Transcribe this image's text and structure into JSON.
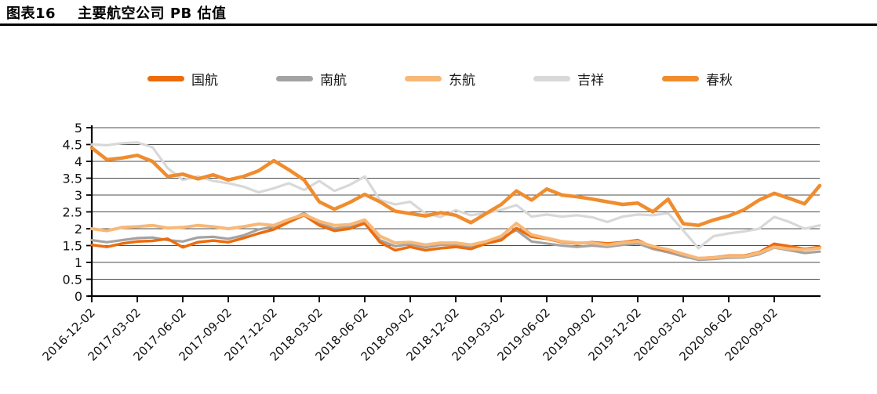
{
  "header": {
    "title_prefix": "图表16",
    "title": "主要航空公司 PB 估值"
  },
  "chart_data": {
    "type": "line",
    "title": "主要航空公司 PB 估值",
    "legend_position": "top",
    "grid": "horizontal",
    "ylim": [
      0,
      5
    ],
    "y_tick_step": 0.5,
    "y_tick_labels": [
      "0",
      "0.5",
      "1",
      "1.5",
      "2",
      "2.5",
      "3",
      "3.5",
      "4",
      "4.5",
      "5"
    ],
    "x_start": "2016-12",
    "x_step": "monthly",
    "x_months_per_tick": 3,
    "x_tick_labels": [
      "2016-12-02",
      "2017-03-02",
      "2017-06-02",
      "2017-09-02",
      "2017-12-02",
      "2018-03-02",
      "2018-06-02",
      "2018-09-02",
      "2018-12-02",
      "2019-03-02",
      "2019-06-02",
      "2019-09-02",
      "2019-12-02",
      "2020-03-02",
      "2020-06-02",
      "2020-09-02"
    ],
    "draw_order": [
      3,
      1,
      0,
      2,
      4
    ],
    "series": [
      {
        "name": "国航",
        "color": "#ec6c0d",
        "width": 3.5,
        "values": [
          1.52,
          1.46,
          1.56,
          1.62,
          1.64,
          1.7,
          1.45,
          1.6,
          1.65,
          1.6,
          1.72,
          1.86,
          1.98,
          2.2,
          2.4,
          2.1,
          1.94,
          2.0,
          2.16,
          1.6,
          1.36,
          1.46,
          1.36,
          1.42,
          1.46,
          1.4,
          1.56,
          1.66,
          2.02,
          1.76,
          1.7,
          1.6,
          1.56,
          1.6,
          1.56,
          1.6,
          1.66,
          1.45,
          1.35,
          1.25,
          1.12,
          1.15,
          1.2,
          1.2,
          1.3,
          1.55,
          1.48,
          1.4,
          1.46
        ]
      },
      {
        "name": "南航",
        "color": "#a3a3a3",
        "width": 3.2,
        "values": [
          1.66,
          1.6,
          1.66,
          1.72,
          1.74,
          1.66,
          1.62,
          1.74,
          1.76,
          1.7,
          1.8,
          1.98,
          2.06,
          2.26,
          2.46,
          2.16,
          2.0,
          2.06,
          2.2,
          1.66,
          1.48,
          1.54,
          1.45,
          1.52,
          1.52,
          1.46,
          1.6,
          1.72,
          1.96,
          1.62,
          1.56,
          1.5,
          1.46,
          1.5,
          1.46,
          1.52,
          1.56,
          1.4,
          1.3,
          1.18,
          1.08,
          1.1,
          1.14,
          1.15,
          1.24,
          1.44,
          1.36,
          1.28,
          1.32
        ]
      },
      {
        "name": "东航",
        "color": "#f7b878",
        "width": 4,
        "values": [
          2.0,
          1.94,
          2.04,
          2.06,
          2.1,
          2.02,
          2.04,
          2.1,
          2.06,
          2.0,
          2.06,
          2.14,
          2.1,
          2.28,
          2.42,
          2.22,
          2.1,
          2.12,
          2.26,
          1.78,
          1.58,
          1.6,
          1.52,
          1.58,
          1.58,
          1.52,
          1.62,
          1.78,
          2.16,
          1.82,
          1.72,
          1.62,
          1.58,
          1.58,
          1.52,
          1.58,
          1.62,
          1.48,
          1.38,
          1.25,
          1.12,
          1.14,
          1.18,
          1.18,
          1.28,
          1.46,
          1.4,
          1.38,
          1.42
        ]
      },
      {
        "name": "吉祥",
        "color": "#d8d8d8",
        "width": 3.2,
        "values": [
          4.5,
          4.48,
          4.54,
          4.56,
          4.42,
          3.8,
          3.45,
          3.55,
          3.42,
          3.35,
          3.25,
          3.08,
          3.2,
          3.35,
          3.15,
          3.42,
          3.12,
          3.3,
          3.55,
          2.85,
          2.72,
          2.8,
          2.45,
          2.35,
          2.55,
          2.4,
          2.46,
          2.56,
          2.7,
          2.36,
          2.42,
          2.36,
          2.4,
          2.34,
          2.2,
          2.36,
          2.42,
          2.4,
          2.46,
          1.95,
          1.42,
          1.78,
          1.86,
          1.92,
          2.0,
          2.35,
          2.2,
          2.0,
          2.1
        ]
      },
      {
        "name": "春秋",
        "color": "#f08c2e",
        "width": 4.5,
        "values": [
          4.4,
          4.05,
          4.1,
          4.18,
          4.0,
          3.55,
          3.62,
          3.48,
          3.6,
          3.45,
          3.55,
          3.72,
          4.02,
          3.75,
          3.45,
          2.8,
          2.58,
          2.78,
          3.02,
          2.8,
          2.52,
          2.45,
          2.38,
          2.48,
          2.4,
          2.18,
          2.45,
          2.72,
          3.12,
          2.85,
          3.18,
          3.0,
          2.95,
          2.88,
          2.8,
          2.72,
          2.76,
          2.5,
          2.88,
          2.15,
          2.1,
          2.26,
          2.38,
          2.56,
          2.85,
          3.05,
          2.9,
          2.74,
          3.28
        ]
      }
    ]
  }
}
